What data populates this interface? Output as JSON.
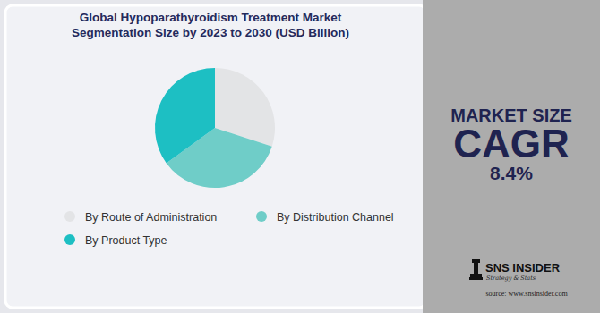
{
  "chart_data": {
    "type": "pie",
    "title": "Global Hypoparathyroidism Treatment Market\nSegmentation Size by 2023 to 2030 (USD Billion)",
    "categories": [
      "By Route of Administration",
      "By Distribution Channel",
      "By Product Type"
    ],
    "values": [
      30,
      35,
      35
    ],
    "colors": [
      "#e3e4e6",
      "#6fcdc8",
      "#1dbfc3"
    ],
    "legend": "bottom",
    "annotations": [
      "MARKET SIZE",
      "CAGR",
      "8.4%",
      "SNS INSIDER",
      "Strategy & Stats",
      "source: www.snsinsider.com"
    ]
  }
}
